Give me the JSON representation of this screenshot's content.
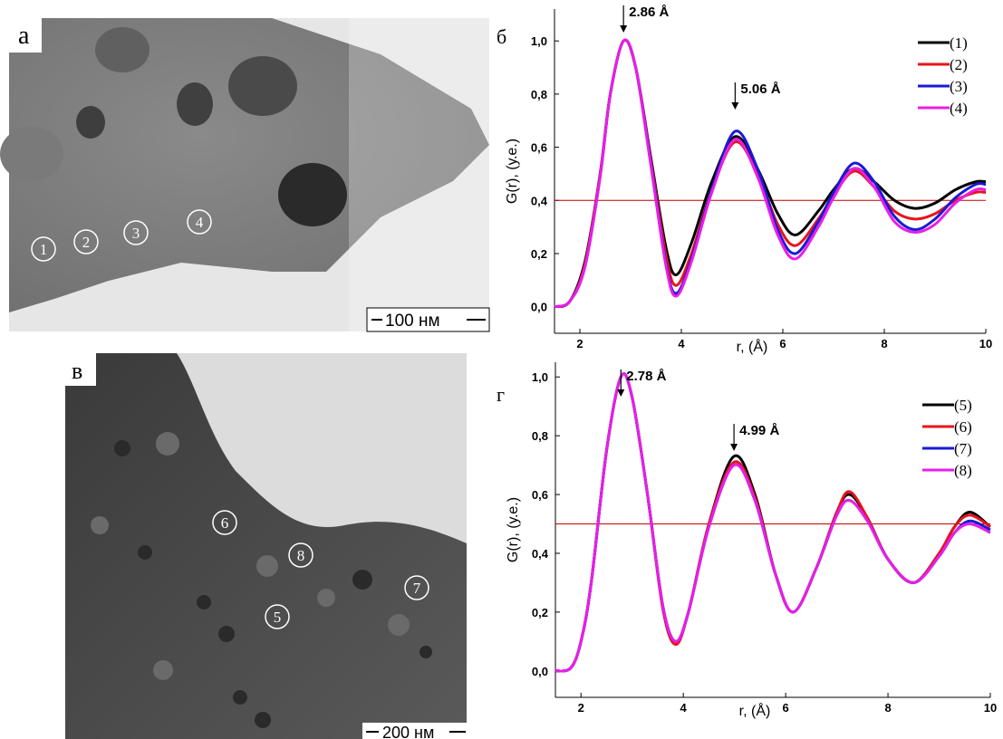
{
  "images": [
    {
      "label": "а",
      "scale_bar": "100 нм",
      "markers": [
        "1",
        "2",
        "3",
        "4"
      ]
    },
    {
      "label": "в",
      "scale_bar": "200 нм",
      "markers": [
        "6",
        "8",
        "7",
        "5"
      ]
    }
  ],
  "chart_data": [
    {
      "type": "line",
      "label": "б",
      "y_label": "G(r), (у.е.)",
      "x_label": "r, (Å)",
      "x": [
        1.5,
        1.8,
        2.1,
        2.4,
        2.6,
        2.86,
        3.1,
        3.4,
        3.7,
        3.9,
        4.2,
        4.6,
        5.06,
        5.5,
        5.9,
        6.25,
        6.7,
        7.0,
        7.4,
        7.8,
        8.2,
        8.6,
        9.0,
        9.4,
        9.8,
        10
      ],
      "series": [
        {
          "name": "(1)",
          "color": "#000000",
          "values": [
            0.0,
            0.02,
            0.17,
            0.5,
            0.8,
            1.0,
            0.9,
            0.56,
            0.22,
            0.12,
            0.24,
            0.47,
            0.64,
            0.52,
            0.35,
            0.27,
            0.36,
            0.44,
            0.52,
            0.47,
            0.4,
            0.37,
            0.39,
            0.44,
            0.47,
            0.47
          ]
        },
        {
          "name": "(2)",
          "color": "#e8141b",
          "values": [
            0.0,
            0.02,
            0.16,
            0.5,
            0.8,
            1.0,
            0.9,
            0.55,
            0.19,
            0.08,
            0.2,
            0.44,
            0.62,
            0.5,
            0.31,
            0.23,
            0.33,
            0.42,
            0.51,
            0.45,
            0.36,
            0.33,
            0.35,
            0.4,
            0.43,
            0.43
          ]
        },
        {
          "name": "(3)",
          "color": "#1a1ad6",
          "values": [
            0.0,
            0.02,
            0.15,
            0.49,
            0.8,
            1.0,
            0.9,
            0.54,
            0.16,
            0.05,
            0.18,
            0.44,
            0.66,
            0.52,
            0.29,
            0.2,
            0.32,
            0.43,
            0.54,
            0.47,
            0.34,
            0.29,
            0.33,
            0.41,
            0.46,
            0.46
          ]
        },
        {
          "name": "(4)",
          "color": "#e81ee8",
          "values": [
            0.0,
            0.02,
            0.15,
            0.49,
            0.8,
            1.0,
            0.9,
            0.53,
            0.15,
            0.04,
            0.17,
            0.43,
            0.63,
            0.49,
            0.27,
            0.18,
            0.3,
            0.41,
            0.52,
            0.45,
            0.32,
            0.28,
            0.31,
            0.39,
            0.44,
            0.44
          ]
        }
      ],
      "annotations": [
        "2.86 Å",
        "5.06 Å"
      ],
      "reference_line": {
        "value": 0.4,
        "color": "#c00000"
      },
      "xlim": [
        1.5,
        10
      ],
      "xticks": [
        2,
        4,
        6,
        8,
        10
      ],
      "ylim": [
        -0.1,
        1.12
      ],
      "yticks": [
        {
          "value": 0,
          "label": "0,0"
        },
        {
          "value": 0.2,
          "label": "0,2"
        },
        {
          "value": 0.4,
          "label": "0,4"
        },
        {
          "value": 0.6,
          "label": "0,6"
        },
        {
          "value": 0.8,
          "label": "0,8"
        },
        {
          "value": 1,
          "label": "1,0"
        }
      ],
      "legend": "upper right"
    },
    {
      "type": "line",
      "label": "г",
      "y_label": "G(r), (у.е.)",
      "x_label": "r, (Å)",
      "x": [
        1.5,
        1.8,
        2.0,
        2.2,
        2.5,
        2.78,
        3.0,
        3.3,
        3.6,
        3.85,
        4.1,
        4.5,
        4.99,
        5.4,
        5.8,
        6.15,
        6.6,
        7.0,
        7.25,
        7.6,
        8.0,
        8.5,
        9.0,
        9.3,
        9.6,
        10
      ],
      "series": [
        {
          "name": "(5)",
          "color": "#000000",
          "values": [
            0.0,
            0.01,
            0.1,
            0.3,
            0.75,
            1.0,
            0.93,
            0.6,
            0.22,
            0.1,
            0.2,
            0.5,
            0.73,
            0.6,
            0.33,
            0.2,
            0.35,
            0.54,
            0.6,
            0.52,
            0.38,
            0.3,
            0.4,
            0.49,
            0.54,
            0.49
          ]
        },
        {
          "name": "(6)",
          "color": "#e8141b",
          "values": [
            0.0,
            0.01,
            0.1,
            0.3,
            0.75,
            1.0,
            0.93,
            0.6,
            0.21,
            0.09,
            0.2,
            0.5,
            0.71,
            0.59,
            0.33,
            0.2,
            0.35,
            0.54,
            0.61,
            0.52,
            0.38,
            0.3,
            0.4,
            0.49,
            0.53,
            0.49
          ]
        },
        {
          "name": "(7)",
          "color": "#1a1ad6",
          "values": [
            0.0,
            0.01,
            0.1,
            0.3,
            0.75,
            1.0,
            0.93,
            0.6,
            0.22,
            0.1,
            0.2,
            0.49,
            0.7,
            0.58,
            0.33,
            0.2,
            0.35,
            0.53,
            0.58,
            0.51,
            0.38,
            0.3,
            0.39,
            0.47,
            0.51,
            0.48
          ]
        },
        {
          "name": "(8)",
          "color": "#e81ee8",
          "values": [
            0.0,
            0.01,
            0.1,
            0.3,
            0.75,
            1.0,
            0.93,
            0.6,
            0.22,
            0.1,
            0.2,
            0.49,
            0.7,
            0.58,
            0.33,
            0.2,
            0.35,
            0.53,
            0.58,
            0.51,
            0.38,
            0.3,
            0.39,
            0.47,
            0.5,
            0.47
          ]
        }
      ],
      "annotations": [
        "2.78 Å",
        "4.99 Å"
      ],
      "reference_line": {
        "value": 0.5,
        "color": "#c00000"
      },
      "xlim": [
        1.5,
        10
      ],
      "xticks": [
        2,
        4,
        6,
        8,
        10
      ],
      "ylim": [
        -0.09,
        1.05
      ],
      "yticks": [
        {
          "value": 0,
          "label": "0,0"
        },
        {
          "value": 0.2,
          "label": "0,2"
        },
        {
          "value": 0.4,
          "label": "0,4"
        },
        {
          "value": 0.6,
          "label": "0,6"
        },
        {
          "value": 0.8,
          "label": "0,8"
        },
        {
          "value": 1,
          "label": "1,0"
        }
      ],
      "legend": "upper right"
    }
  ]
}
